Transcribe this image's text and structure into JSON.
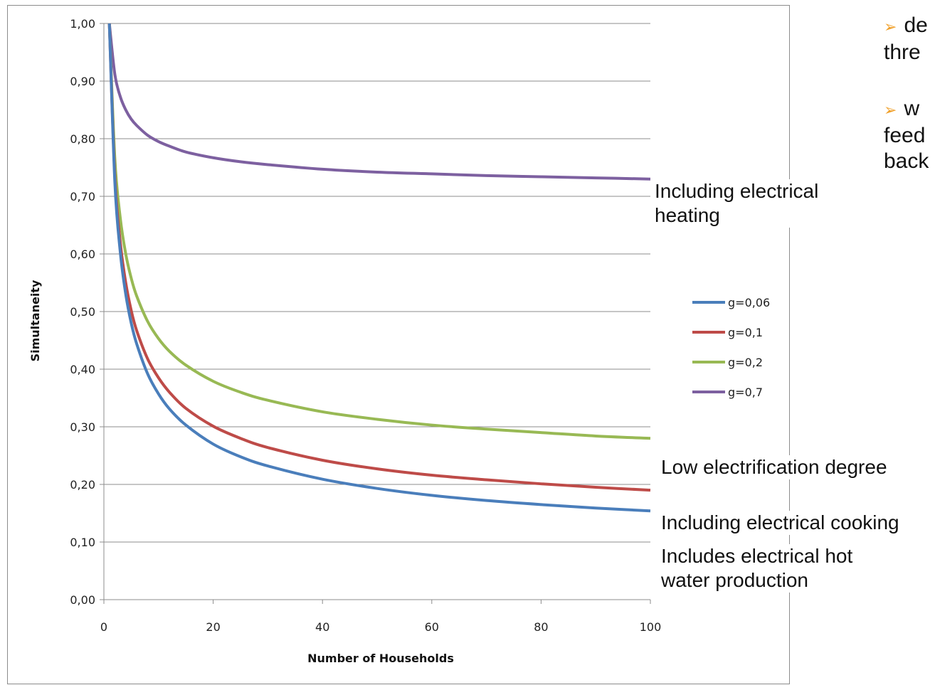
{
  "chart_data": {
    "type": "line",
    "xlabel": "Number of Households",
    "ylabel": "Simultaneity",
    "xlim": [
      0,
      100
    ],
    "ylim": [
      0,
      1
    ],
    "x_ticks": [
      "0",
      "20",
      "40",
      "60",
      "80",
      "100"
    ],
    "y_ticks": [
      "0,00",
      "0,10",
      "0,20",
      "0,30",
      "0,40",
      "0,50",
      "0,60",
      "0,70",
      "0,80",
      "0,90",
      "1,00"
    ],
    "grid": "horizontal",
    "legend_position": "right",
    "x": [
      1,
      2,
      3,
      4,
      5,
      6,
      8,
      10,
      12,
      15,
      20,
      25,
      30,
      40,
      50,
      60,
      70,
      80,
      90,
      100
    ],
    "series": [
      {
        "name": "g=0,06",
        "color": "#4a7ebb",
        "values": [
          1.0,
          0.725,
          0.603,
          0.53,
          0.48,
          0.444,
          0.392,
          0.357,
          0.331,
          0.303,
          0.27,
          0.248,
          0.232,
          0.209,
          0.193,
          0.181,
          0.172,
          0.165,
          0.159,
          0.154
        ]
      },
      {
        "name": "g=0,1",
        "color": "#be4b48",
        "values": [
          1.0,
          0.736,
          0.62,
          0.55,
          0.502,
          0.467,
          0.418,
          0.385,
          0.36,
          0.332,
          0.301,
          0.28,
          0.264,
          0.242,
          0.227,
          0.216,
          0.208,
          0.201,
          0.195,
          0.19
        ]
      },
      {
        "name": "g=0,2",
        "color": "#98b954",
        "values": [
          1.0,
          0.766,
          0.662,
          0.6,
          0.558,
          0.527,
          0.483,
          0.453,
          0.431,
          0.407,
          0.379,
          0.36,
          0.346,
          0.326,
          0.313,
          0.303,
          0.296,
          0.29,
          0.284,
          0.28
        ]
      },
      {
        "name": "g=0,7",
        "color": "#7d60a0",
        "values": [
          1.0,
          0.912,
          0.873,
          0.85,
          0.834,
          0.823,
          0.806,
          0.795,
          0.787,
          0.777,
          0.767,
          0.76,
          0.755,
          0.747,
          0.742,
          0.739,
          0.736,
          0.734,
          0.732,
          0.73
        ]
      }
    ]
  },
  "annotations": {
    "heating": [
      "Including electrical",
      "heating"
    ],
    "low": "Low electrification degree",
    "cooking": "Including electrical cooking",
    "hotwater": [
      "Includes electrical hot",
      "water production"
    ]
  },
  "slide_text": {
    "bullet1": [
      "de",
      "thre"
    ],
    "bullet2": [
      "w",
      "feed",
      "back"
    ]
  }
}
